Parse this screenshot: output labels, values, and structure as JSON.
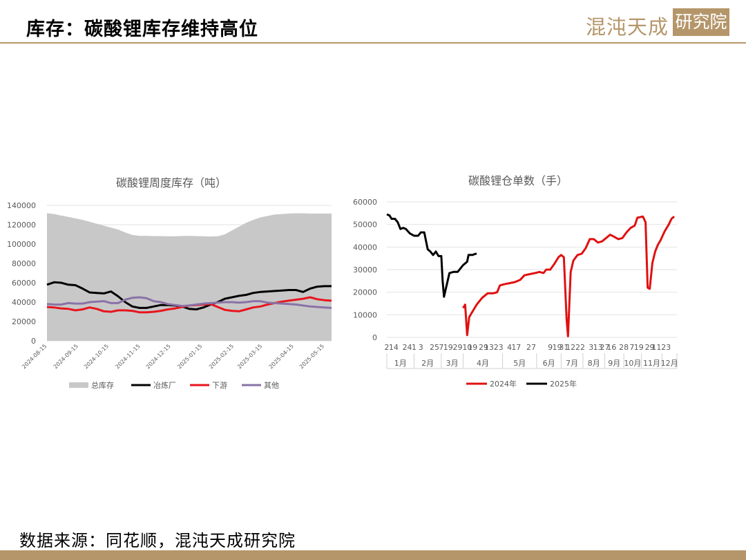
{
  "header": {
    "title": "库存：碳酸锂库存维持高位",
    "logo_text": "混沌天成",
    "logo_box": "研究院"
  },
  "footer": {
    "source": "数据来源：同花顺，混沌天成研究院"
  },
  "colors": {
    "accent": "#b5966a",
    "total": "#c8c8c8",
    "smelter": "#000000",
    "downstream": "#e8141c",
    "other": "#8a72a6",
    "y2024": "#e01010",
    "y2025": "#000000"
  },
  "chart_data": [
    {
      "type": "area",
      "title": "碳酸锂周度库存（吨）",
      "ylim": [
        0,
        140000
      ],
      "yticks": [
        0,
        20000,
        40000,
        60000,
        80000,
        100000,
        120000,
        140000
      ],
      "x": [
        "2024-08-15",
        "2024-08-22",
        "2024-08-29",
        "2024-09-05",
        "2024-09-12",
        "2024-09-19",
        "2024-09-26",
        "2024-10-03",
        "2024-10-10",
        "2024-10-17",
        "2024-10-24",
        "2024-10-31",
        "2024-11-07",
        "2024-11-14",
        "2024-11-21",
        "2024-11-28",
        "2024-12-05",
        "2024-12-12",
        "2024-12-19",
        "2024-12-26",
        "2025-01-02",
        "2025-01-09",
        "2025-01-16",
        "2025-01-23",
        "2025-01-30",
        "2025-02-06",
        "2025-02-13",
        "2025-02-20",
        "2025-02-27",
        "2025-03-06",
        "2025-03-13",
        "2025-03-20",
        "2025-03-27",
        "2025-04-03",
        "2025-04-10",
        "2025-04-17",
        "2025-04-24",
        "2025-05-01",
        "2025-05-08",
        "2025-05-15",
        "2025-05-22"
      ],
      "xticks": [
        "2024-08-15",
        "2024-09-15",
        "2024-10-15",
        "2024-11-15",
        "2024-12-15",
        "2025-01-15",
        "2025-02-15",
        "2025-03-15",
        "2025-04-15",
        "2025-05-15"
      ],
      "series": [
        {
          "name": "总库存",
          "style": "area",
          "color": "#c8c8c8",
          "values": [
            132000,
            131000,
            129500,
            128000,
            126500,
            125000,
            123000,
            121000,
            119000,
            117000,
            115000,
            112000,
            109500,
            108500,
            108500,
            108200,
            108200,
            108000,
            108000,
            108300,
            108500,
            108200,
            108000,
            107800,
            108000,
            110000,
            114000,
            118000,
            122000,
            125000,
            127500,
            129000,
            130500,
            131000,
            131500,
            131800,
            131800,
            131500,
            131500,
            131500,
            131500
          ]
        },
        {
          "name": "冶炼厂",
          "style": "line",
          "color": "#000000",
          "values": [
            58000,
            60500,
            60000,
            58000,
            57500,
            54000,
            50000,
            49500,
            49000,
            51000,
            46000,
            40000,
            35500,
            34000,
            34000,
            35500,
            37000,
            37000,
            36500,
            35500,
            33000,
            32500,
            34500,
            37500,
            40000,
            43500,
            45000,
            46500,
            47500,
            49500,
            50500,
            51000,
            51500,
            52000,
            52500,
            52500,
            50500,
            54000,
            56000,
            56500,
            56500
          ]
        },
        {
          "name": "下游",
          "style": "line",
          "color": "#e8141c",
          "values": [
            35000,
            34500,
            33500,
            33000,
            31500,
            32500,
            34500,
            33000,
            30500,
            30000,
            31500,
            31500,
            31000,
            29500,
            29500,
            30000,
            31000,
            32500,
            33500,
            35000,
            36500,
            37000,
            37500,
            38000,
            35000,
            32000,
            31000,
            30500,
            32500,
            34500,
            35500,
            37500,
            39000,
            40500,
            41500,
            42500,
            43500,
            45000,
            43000,
            42000,
            41500
          ]
        },
        {
          "name": "其他",
          "style": "line",
          "color": "#8a72a6",
          "values": [
            38000,
            37500,
            37500,
            39000,
            38500,
            38500,
            40000,
            40500,
            41000,
            39000,
            39000,
            42500,
            44500,
            45000,
            44000,
            41000,
            40000,
            38000,
            37000,
            36000,
            36500,
            37500,
            38500,
            39000,
            39500,
            40000,
            40000,
            39500,
            40000,
            41000,
            41000,
            39500,
            39000,
            38500,
            38000,
            37500,
            36500,
            35500,
            35000,
            34500,
            34000
          ]
        }
      ],
      "legend": "bottom"
    },
    {
      "type": "line",
      "title": "碳酸锂仓单数（手）",
      "ylim": [
        0,
        60000
      ],
      "yticks": [
        0,
        10000,
        20000,
        30000,
        40000,
        50000,
        60000
      ],
      "day_labels": [
        {
          "text": "2",
          "x": 0
        },
        {
          "text": "14",
          "x": 0.5
        },
        {
          "text": "24",
          "x": 1.5
        },
        {
          "text": "1",
          "x": 2
        },
        {
          "text": "3",
          "x": 2.5
        },
        {
          "text": "25",
          "x": 3.5
        },
        {
          "text": "7",
          "x": 4
        },
        {
          "text": "19",
          "x": 4.5
        },
        {
          "text": "29",
          "x": 5.2
        },
        {
          "text": "10",
          "x": 5.9
        },
        {
          "text": "19",
          "x": 6.3
        },
        {
          "text": "29",
          "x": 7.1
        },
        {
          "text": "13",
          "x": 7.5
        },
        {
          "text": "23",
          "x": 8.2
        },
        {
          "text": "4",
          "x": 9
        },
        {
          "text": "17",
          "x": 9.5
        },
        {
          "text": "27",
          "x": 10.6
        },
        {
          "text": "9",
          "x": 12
        },
        {
          "text": "19",
          "x": 12.5
        },
        {
          "text": "31",
          "x": 13
        },
        {
          "text": "12",
          "x": 13.5
        },
        {
          "text": "22",
          "x": 14.2
        },
        {
          "text": "3",
          "x": 15
        },
        {
          "text": "13",
          "x": 15.5
        },
        {
          "text": "27",
          "x": 16
        },
        {
          "text": "16",
          "x": 16.5
        },
        {
          "text": "28",
          "x": 17.4
        },
        {
          "text": "7",
          "x": 18
        },
        {
          "text": "19",
          "x": 18.5
        },
        {
          "text": "29",
          "x": 19.3
        },
        {
          "text": "11",
          "x": 19.8
        },
        {
          "text": "23",
          "x": 20.5
        }
      ],
      "months": [
        "1月",
        "2月",
        "3月",
        "4月",
        "5月",
        "6月",
        "7月",
        "8月",
        "9月",
        "10月",
        "11月",
        "12月"
      ],
      "series": [
        {
          "name": "2024年",
          "color": "#e01010",
          "points": [
            [
              5.6,
              13000
            ],
            [
              5.75,
              14500
            ],
            [
              5.9,
              1000
            ],
            [
              6.05,
              9000
            ],
            [
              6.3,
              11500
            ],
            [
              6.6,
              14500
            ],
            [
              7.0,
              17500
            ],
            [
              7.4,
              19500
            ],
            [
              7.8,
              19500
            ],
            [
              8.1,
              20000
            ],
            [
              8.3,
              23000
            ],
            [
              8.6,
              23500
            ],
            [
              9.0,
              24000
            ],
            [
              9.4,
              24500
            ],
            [
              9.8,
              25500
            ],
            [
              10.1,
              27500
            ],
            [
              10.5,
              28000
            ],
            [
              10.9,
              28500
            ],
            [
              11.2,
              29000
            ],
            [
              11.5,
              28500
            ],
            [
              11.7,
              30000
            ],
            [
              12.0,
              30000
            ],
            [
              12.3,
              32500
            ],
            [
              12.6,
              35500
            ],
            [
              12.8,
              36500
            ],
            [
              13.0,
              35500
            ],
            [
              13.2,
              8000
            ],
            [
              13.3,
              500
            ],
            [
              13.5,
              29000
            ],
            [
              13.7,
              34000
            ],
            [
              14.0,
              36500
            ],
            [
              14.3,
              37000
            ],
            [
              14.6,
              39500
            ],
            [
              14.9,
              43500
            ],
            [
              15.2,
              43500
            ],
            [
              15.5,
              42000
            ],
            [
              15.8,
              42500
            ],
            [
              16.1,
              44000
            ],
            [
              16.4,
              45500
            ],
            [
              16.7,
              44500
            ],
            [
              17.0,
              43500
            ],
            [
              17.3,
              44000
            ],
            [
              17.6,
              46500
            ],
            [
              17.9,
              48500
            ],
            [
              18.2,
              49500
            ],
            [
              18.4,
              53000
            ],
            [
              18.8,
              53500
            ],
            [
              19.0,
              51000
            ],
            [
              19.15,
              22000
            ],
            [
              19.3,
              21500
            ],
            [
              19.5,
              33000
            ],
            [
              19.7,
              38000
            ],
            [
              19.9,
              41000
            ],
            [
              20.1,
              43000
            ],
            [
              20.4,
              47000
            ],
            [
              20.7,
              50000
            ],
            [
              20.9,
              52500
            ],
            [
              21.1,
              53500
            ]
          ]
        },
        {
          "name": "2025年",
          "color": "#000000",
          "points": [
            [
              0.0,
              54500
            ],
            [
              0.2,
              54000
            ],
            [
              0.35,
              52500
            ],
            [
              0.6,
              52500
            ],
            [
              0.8,
              51000
            ],
            [
              1.0,
              48000
            ],
            [
              1.2,
              48500
            ],
            [
              1.4,
              48000
            ],
            [
              1.7,
              46000
            ],
            [
              2.0,
              45000
            ],
            [
              2.3,
              45000
            ],
            [
              2.5,
              46500
            ],
            [
              2.75,
              46500
            ],
            [
              3.0,
              39000
            ],
            [
              3.2,
              38000
            ],
            [
              3.4,
              36500
            ],
            [
              3.6,
              38000
            ],
            [
              3.8,
              36000
            ],
            [
              4.0,
              36000
            ],
            [
              4.1,
              25000
            ],
            [
              4.2,
              18000
            ],
            [
              4.35,
              22000
            ],
            [
              4.6,
              28500
            ],
            [
              4.9,
              29000
            ],
            [
              5.2,
              29000
            ],
            [
              5.4,
              30500
            ],
            [
              5.6,
              32000
            ],
            [
              5.9,
              33500
            ],
            [
              6.0,
              36500
            ],
            [
              6.3,
              36500
            ],
            [
              6.5,
              37000
            ],
            [
              6.6,
              37000
            ]
          ]
        }
      ],
      "legend": "bottom"
    }
  ]
}
